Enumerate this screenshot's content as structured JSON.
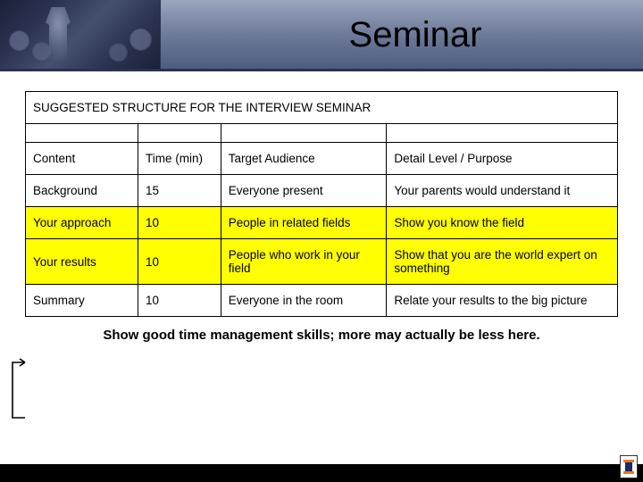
{
  "header": {
    "title": "Seminar"
  },
  "table": {
    "title": "SUGGESTED STRUCTURE FOR THE INTERVIEW SEMINAR",
    "columns": {
      "c1": "Content",
      "c2": "Time (min)",
      "c3": "Target Audience",
      "c4": "Detail Level / Purpose"
    },
    "rows": [
      {
        "content": "Background",
        "time": "15",
        "audience": "Everyone present",
        "detail": "Your parents would understand it",
        "highlight": false
      },
      {
        "content": "Your approach",
        "time": "10",
        "audience": "People in related fields",
        "detail": "Show you know the field",
        "highlight": true
      },
      {
        "content": "Your results",
        "time": "10",
        "audience": "People who work in your field",
        "detail": "Show that you are the world expert on something",
        "highlight": true
      },
      {
        "content": "Summary",
        "time": "10",
        "audience": "Everyone in the room",
        "detail": "Relate your results to the big picture",
        "highlight": false
      }
    ]
  },
  "footer_note": "Show good time management skills; more may actually be less here.",
  "colors": {
    "highlight": "#ffff00",
    "border": "#000000",
    "header_gradient_top": "#9aa5bd",
    "header_gradient_bottom": "#4d5c7e",
    "header_underline": "#2a3250",
    "bottom_bar": "#000000",
    "logo_blue": "#1a2a6c",
    "logo_orange": "#e67a24"
  },
  "arrow": {
    "stroke": "#000000",
    "width": 1.5
  }
}
